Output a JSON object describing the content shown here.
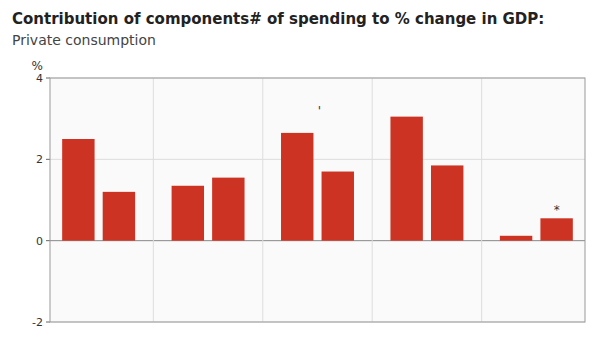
{
  "chart_data": {
    "type": "bar",
    "title": "Contribution of components# of spending to % change in GDP:",
    "subtitle": "Private consumption",
    "y_label": "%",
    "categories": [
      null,
      null,
      null,
      null,
      null,
      null,
      null,
      null,
      null,
      null
    ],
    "values": [
      2.5,
      1.2,
      1.35,
      1.55,
      2.65,
      1.7,
      3.05,
      1.85,
      0.12,
      0.55
    ],
    "color": "#cc3322",
    "ylim": [
      -2,
      4
    ],
    "yticks": [
      -2,
      0,
      2,
      4
    ],
    "grid": true,
    "tick_labels": "y",
    "annotations": [
      {
        "text": "*",
        "index": 9
      },
      {
        "text": "'",
        "index": 4,
        "y": 3.1
      }
    ]
  }
}
